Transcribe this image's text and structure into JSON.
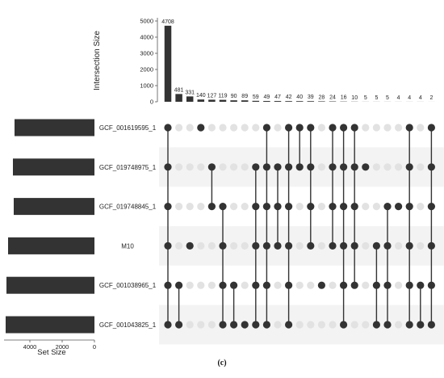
{
  "caption": "(c)",
  "chart_data": {
    "type": "upset",
    "bar_color": "#333333",
    "dot_active_color": "#333333",
    "dot_inactive_color": "#e2e2e2",
    "stripe_color": "#f3f3f3",
    "intersection_axis": {
      "label": "Intersection Size",
      "ylim": [
        0,
        5200
      ],
      "ticks": [
        0,
        1000,
        2000,
        3000,
        4000,
        5000
      ]
    },
    "set_axis": {
      "label": "Set Size",
      "xlim": [
        0,
        5600
      ],
      "ticks": [
        4000,
        2000,
        0
      ]
    },
    "sets": [
      {
        "name": "GCF_001619595_1",
        "size": 4950
      },
      {
        "name": "GCF_019748975_1",
        "size": 5050
      },
      {
        "name": "GCF_019748845_1",
        "size": 5000
      },
      {
        "name": "M10",
        "size": 5350
      },
      {
        "name": "GCF_001038965_1",
        "size": 5450
      },
      {
        "name": "GCF_001043825_1",
        "size": 5500
      }
    ],
    "intersections": [
      {
        "value": 4708,
        "sets": [
          0,
          1,
          2,
          3,
          4,
          5
        ]
      },
      {
        "value": 481,
        "sets": [
          4,
          5
        ]
      },
      {
        "value": 331,
        "sets": [
          3
        ]
      },
      {
        "value": 140,
        "sets": [
          0
        ]
      },
      {
        "value": 127,
        "sets": [
          1,
          2
        ]
      },
      {
        "value": 119,
        "sets": [
          2,
          3,
          4,
          5
        ]
      },
      {
        "value": 90,
        "sets": [
          4,
          5
        ]
      },
      {
        "value": 89,
        "sets": [
          5
        ]
      },
      {
        "value": 59,
        "sets": [
          1,
          2,
          3,
          4,
          5
        ]
      },
      {
        "value": 49,
        "sets": [
          0,
          1,
          2,
          3,
          4,
          5
        ]
      },
      {
        "value": 47,
        "sets": [
          1,
          2,
          3
        ]
      },
      {
        "value": 42,
        "sets": [
          0,
          1,
          2,
          3,
          4,
          5
        ]
      },
      {
        "value": 40,
        "sets": [
          0,
          1
        ]
      },
      {
        "value": 39,
        "sets": [
          0,
          1,
          2,
          3
        ]
      },
      {
        "value": 28,
        "sets": [
          4
        ]
      },
      {
        "value": 24,
        "sets": [
          0,
          1,
          2,
          3
        ]
      },
      {
        "value": 16,
        "sets": [
          0,
          1,
          2,
          3,
          4,
          5
        ]
      },
      {
        "value": 10,
        "sets": [
          0,
          1,
          2,
          3,
          4
        ]
      },
      {
        "value": 5,
        "sets": [
          1
        ]
      },
      {
        "value": 5,
        "sets": [
          3,
          4,
          5
        ]
      },
      {
        "value": 5,
        "sets": [
          2,
          3,
          4,
          5
        ]
      },
      {
        "value": 4,
        "sets": [
          2
        ]
      },
      {
        "value": 4,
        "sets": [
          0,
          1,
          2,
          3,
          4,
          5
        ]
      },
      {
        "value": 4,
        "sets": [
          4,
          5
        ]
      },
      {
        "value": 2,
        "sets": [
          0,
          1,
          2,
          3,
          4,
          5
        ]
      }
    ]
  }
}
